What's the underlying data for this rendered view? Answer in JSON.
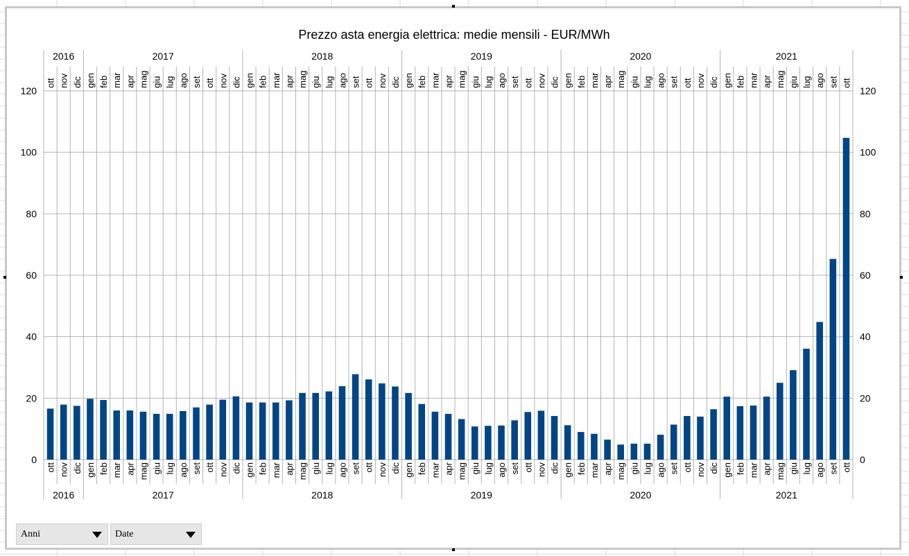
{
  "chart_data": {
    "type": "bar",
    "title": "Prezzo asta energia elettrica: medie mensili -  EUR/MWh",
    "xlabel": "",
    "ylabel": "",
    "ylim": [
      0,
      120
    ],
    "yticks": [
      0,
      20,
      40,
      60,
      80,
      100,
      120
    ],
    "grid": true,
    "legend": "none",
    "bar_color": "#004586",
    "years": [
      {
        "label": "2016",
        "count": 3
      },
      {
        "label": "2017",
        "count": 12
      },
      {
        "label": "2018",
        "count": 12
      },
      {
        "label": "2019",
        "count": 12
      },
      {
        "label": "2020",
        "count": 12
      },
      {
        "label": "2021",
        "count": 10
      }
    ],
    "categories": [
      "ott",
      "nov",
      "dic",
      "gen",
      "feb",
      "mar",
      "apr",
      "mag",
      "giu",
      "lug",
      "ago",
      "set",
      "ott",
      "nov",
      "dic",
      "gen",
      "feb",
      "mar",
      "apr",
      "mag",
      "giu",
      "lug",
      "ago",
      "set",
      "ott",
      "nov",
      "dic",
      "gen",
      "feb",
      "mar",
      "apr",
      "mag",
      "giu",
      "lug",
      "ago",
      "set",
      "ott",
      "nov",
      "dic",
      "gen",
      "feb",
      "mar",
      "apr",
      "mag",
      "giu",
      "lug",
      "ago",
      "set",
      "ott",
      "nov",
      "dic",
      "gen",
      "feb",
      "mar",
      "apr",
      "mag",
      "giu",
      "lug",
      "ago",
      "set",
      "ott"
    ],
    "values": [
      16.6,
      17.9,
      17.5,
      19.8,
      19.4,
      16.0,
      16.0,
      15.6,
      14.9,
      14.9,
      15.8,
      17.0,
      17.9,
      19.5,
      20.6,
      18.6,
      18.6,
      18.6,
      19.3,
      21.7,
      21.7,
      22.2,
      23.9,
      27.8,
      26.1,
      24.8,
      23.8,
      21.7,
      18.1,
      15.6,
      14.9,
      13.2,
      10.8,
      11.0,
      11.1,
      12.8,
      15.5,
      15.9,
      14.2,
      11.2,
      9.0,
      8.4,
      6.5,
      4.9,
      5.2,
      5.2,
      8.1,
      11.4,
      14.2,
      14.0,
      16.4,
      20.5,
      17.4,
      17.6,
      20.5,
      25.0,
      29.1,
      36.1,
      44.8,
      65.3,
      104.7
    ]
  },
  "controls": {
    "field_anni": "Anni",
    "field_date": "Date"
  }
}
